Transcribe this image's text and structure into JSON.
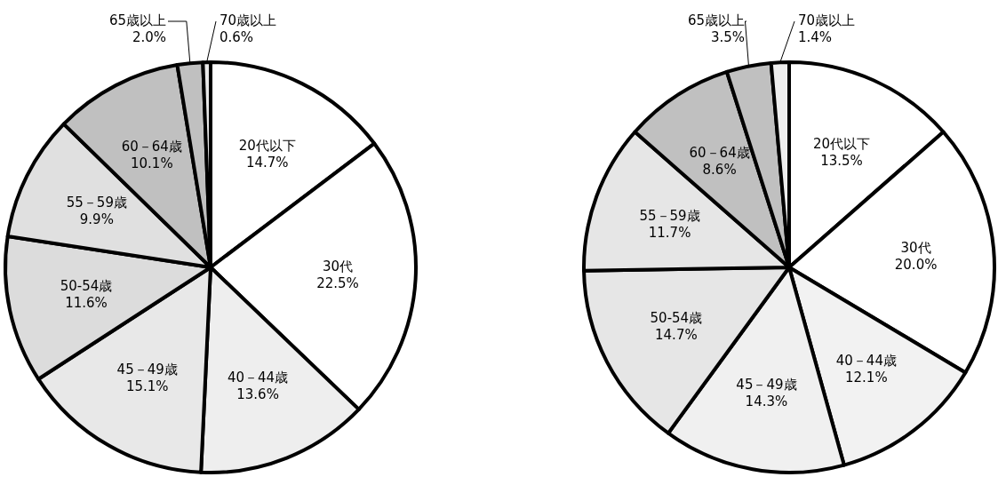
{
  "chart_data": [
    {
      "type": "pie",
      "categories": [
        "20代以下",
        "30代",
        "40－44歳",
        "45－49歳",
        "50-54歳",
        "55－59歳",
        "60－64歳",
        "65歳以上",
        "70歳以上"
      ],
      "values": [
        14.7,
        22.5,
        13.6,
        15.1,
        11.6,
        9.9,
        10.1,
        2.0,
        0.6
      ],
      "value_labels": [
        "14.7%",
        "22.5%",
        "13.6%",
        "15.1%",
        "11.6%",
        "9.9%",
        "10.1%",
        "2.0%",
        "0.6%"
      ],
      "colors": [
        "#ffffff",
        "#ffffff",
        "#eeeeee",
        "#e8e8e8",
        "#dcdcdc",
        "#e0e0e0",
        "#c0c0c0",
        "#c0c0c0",
        "#e8e8e8"
      ]
    },
    {
      "type": "pie",
      "categories": [
        "20代以下",
        "30代",
        "40－44歳",
        "45－49歳",
        "50-54歳",
        "55－59歳",
        "60－64歳",
        "65歳以上",
        "70歳以上"
      ],
      "values": [
        13.5,
        20.0,
        12.1,
        14.3,
        14.7,
        11.7,
        8.6,
        3.5,
        1.4
      ],
      "value_labels": [
        "13.5%",
        "20.0%",
        "12.1%",
        "14.3%",
        "14.7%",
        "11.7%",
        "8.6%",
        "3.5%",
        "1.4%"
      ],
      "colors": [
        "#ffffff",
        "#ffffff",
        "#f2f2f2",
        "#f0f0f0",
        "#e6e6e6",
        "#e6e6e6",
        "#c0c0c0",
        "#c0c0c0",
        "#eeeeee"
      ]
    }
  ]
}
